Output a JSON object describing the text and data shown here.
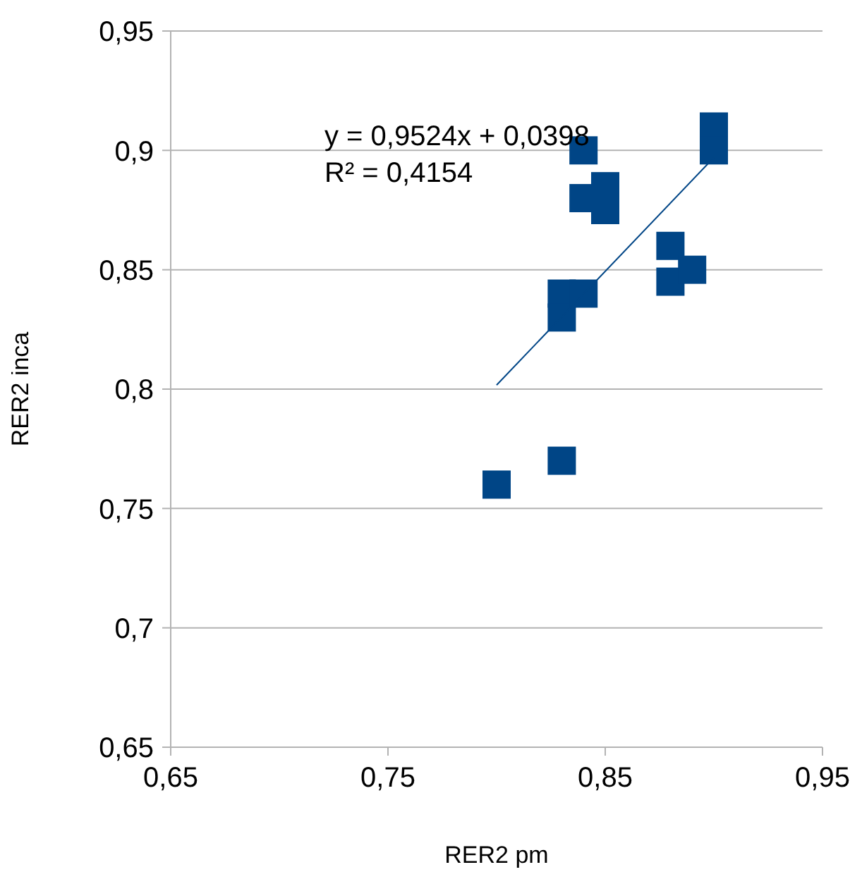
{
  "chart_data": {
    "type": "scatter",
    "xlabel": "RER2 pm",
    "ylabel": "RER2 inca",
    "x": [
      0.8,
      0.83,
      0.83,
      0.83,
      0.84,
      0.84,
      0.84,
      0.85,
      0.85,
      0.88,
      0.88,
      0.89,
      0.9,
      0.9
    ],
    "series": [
      {
        "color": "#004586",
        "values": [
          0.76,
          0.77,
          0.84,
          0.83,
          0.84,
          0.9,
          0.88,
          0.885,
          0.875,
          0.86,
          0.845,
          0.85,
          0.91,
          0.9
        ]
      },
      {
        "type": "line",
        "marker": "none",
        "color": "#004586",
        "x": [
          0.8,
          0.9
        ],
        "values": [
          0.8017,
          0.897
        ]
      }
    ],
    "annotations": [
      "y = 0,9524x + 0,0398",
      "R² = 0,4154"
    ],
    "xlim": [
      0.65,
      0.95
    ],
    "xticks": [
      {
        "value": 0.65,
        "label": "0,65"
      },
      {
        "value": 0.75,
        "label": "0,75"
      },
      {
        "value": 0.85,
        "label": "0,85"
      },
      {
        "value": 0.95,
        "label": "0,95"
      }
    ],
    "ylim": [
      0.65,
      0.95
    ],
    "yticks": [
      {
        "value": 0.65,
        "label": "0,65"
      },
      {
        "value": 0.7,
        "label": "0,7"
      },
      {
        "value": 0.75,
        "label": "0,75"
      },
      {
        "value": 0.8,
        "label": "0,8"
      },
      {
        "value": 0.85,
        "label": "0,85"
      },
      {
        "value": 0.9,
        "label": "0,9"
      },
      {
        "value": 0.95,
        "label": "0,95"
      }
    ],
    "grid": "y",
    "marker": "square"
  }
}
